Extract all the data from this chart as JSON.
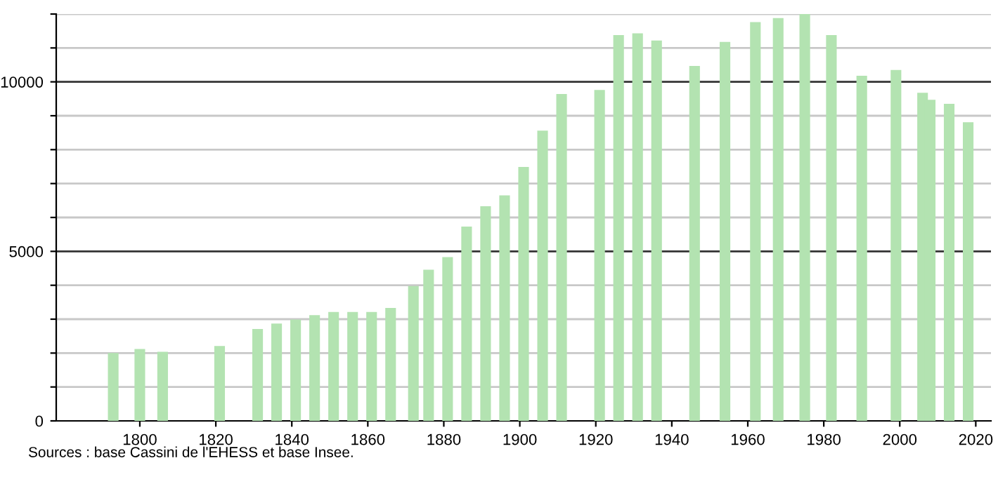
{
  "chart_data": {
    "type": "bar",
    "x": [
      1793,
      1800,
      1806,
      1821,
      1831,
      1836,
      1841,
      1846,
      1851,
      1856,
      1861,
      1866,
      1872,
      1876,
      1881,
      1886,
      1891,
      1896,
      1901,
      1906,
      1911,
      1921,
      1926,
      1931,
      1936,
      1946,
      1954,
      1962,
      1968,
      1975,
      1982,
      1990,
      1999,
      2006,
      2008,
      2013,
      2018
    ],
    "values": [
      2000,
      2120,
      2040,
      2210,
      2710,
      2870,
      2990,
      3120,
      3210,
      3210,
      3210,
      3330,
      3980,
      4460,
      4830,
      5730,
      6330,
      6650,
      7490,
      8560,
      9640,
      9760,
      11380,
      11430,
      11220,
      10470,
      11180,
      11760,
      11880,
      12000,
      11380,
      10180,
      10350,
      9680,
      9470,
      9350,
      8810
    ],
    "color": "#b3e3b1",
    "xlim": [
      1778,
      2024
    ],
    "xticks": [
      1800,
      1820,
      1840,
      1860,
      1880,
      1900,
      1920,
      1940,
      1960,
      1980,
      2000,
      2020
    ],
    "ylim": [
      0,
      12000
    ],
    "yticks": [
      0,
      {
        "value": 1000,
        "label": null
      },
      {
        "value": 2000,
        "label": null
      },
      {
        "value": 3000,
        "label": null
      },
      {
        "value": 4000,
        "label": null
      },
      5000,
      {
        "value": 6000,
        "label": null
      },
      {
        "value": 7000,
        "label": null
      },
      {
        "value": 8000,
        "label": null
      },
      {
        "value": 9000,
        "label": null
      },
      10000,
      {
        "value": 11000,
        "label": null
      },
      {
        "value": 12000,
        "label": null
      }
    ],
    "grid": "y",
    "annotations": [
      "Sources : base Cassini de l'EHESS et base Insee."
    ]
  }
}
